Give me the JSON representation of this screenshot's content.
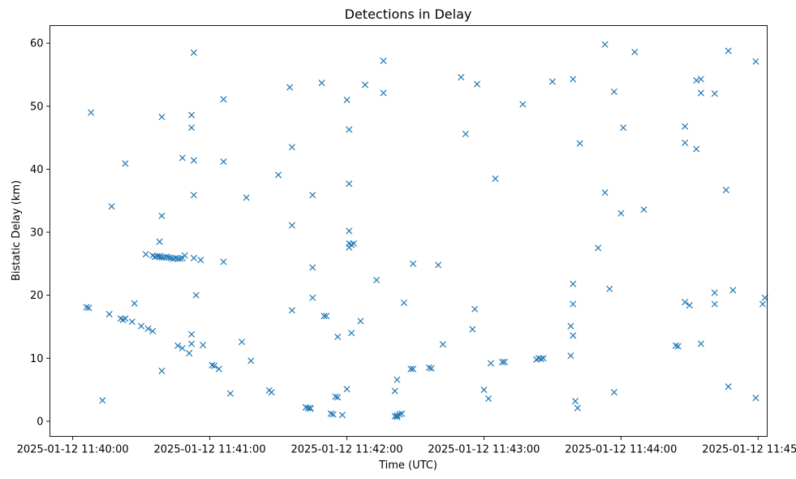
{
  "chart_data": {
    "type": "scatter",
    "title": "Detections in Delay",
    "xlabel": "Time (UTC)",
    "ylabel": "Bistatic Delay (km)",
    "xlim": [
      "2025-01-12 11:39:50",
      "2025-01-12 11:45:04"
    ],
    "ylim": [
      -2.4,
      62.8
    ],
    "x_ticks": [
      "2025-01-12 11:40:00",
      "2025-01-12 11:41:00",
      "2025-01-12 11:42:00",
      "2025-01-12 11:43:00",
      "2025-01-12 11:44:00",
      "2025-01-12 11:45:00"
    ],
    "y_ticks": [
      0,
      10,
      20,
      30,
      40,
      50,
      60
    ],
    "grid": false,
    "marker": "x",
    "color": "#1f77b4",
    "series": [
      {
        "points": [
          [
            "11:40:06",
            18.1
          ],
          [
            "11:40:07",
            18.0
          ],
          [
            "11:40:08",
            49.0
          ],
          [
            "11:40:13",
            3.3
          ],
          [
            "11:40:16",
            17.0
          ],
          [
            "11:40:17",
            34.1
          ],
          [
            "11:40:21",
            16.3
          ],
          [
            "11:40:22",
            16.1
          ],
          [
            "11:40:23",
            16.3
          ],
          [
            "11:40:23",
            40.9
          ],
          [
            "11:40:26",
            15.8
          ],
          [
            "11:40:27",
            18.7
          ],
          [
            "11:40:30",
            15.1
          ],
          [
            "11:40:32",
            26.5
          ],
          [
            "11:40:33",
            14.7
          ],
          [
            "11:40:35",
            26.3
          ],
          [
            "11:40:35",
            14.3
          ],
          [
            "11:40:36",
            26.1
          ],
          [
            "11:40:37",
            26.2
          ],
          [
            "11:40:38",
            26.1
          ],
          [
            "11:40:38",
            28.5
          ],
          [
            "11:40:38",
            26.2
          ],
          [
            "11:40:39",
            48.3
          ],
          [
            "11:40:39",
            32.6
          ],
          [
            "11:40:39",
            26.0
          ],
          [
            "11:40:39",
            8.0
          ],
          [
            "11:40:40",
            26.0
          ],
          [
            "11:40:41",
            26.1
          ],
          [
            "11:40:42",
            26.0
          ],
          [
            "11:40:43",
            25.9
          ],
          [
            "11:40:44",
            25.8
          ],
          [
            "11:40:45",
            25.9
          ],
          [
            "11:40:46",
            12.0
          ],
          [
            "11:40:46",
            25.8
          ],
          [
            "11:40:47",
            25.8
          ],
          [
            "11:40:48",
            41.8
          ],
          [
            "11:40:48",
            25.9
          ],
          [
            "11:40:48",
            11.6
          ],
          [
            "11:40:49",
            26.3
          ],
          [
            "11:40:51",
            10.8
          ],
          [
            "11:40:52",
            48.6
          ],
          [
            "11:40:52",
            46.6
          ],
          [
            "11:40:52",
            12.3
          ],
          [
            "11:40:52",
            13.8
          ],
          [
            "11:40:53",
            58.5
          ],
          [
            "11:40:53",
            41.4
          ],
          [
            "11:40:53",
            35.9
          ],
          [
            "11:40:53",
            25.9
          ],
          [
            "11:40:54",
            20.0
          ],
          [
            "11:40:56",
            25.6
          ],
          [
            "11:40:57",
            12.1
          ],
          [
            "11:41:01",
            8.9
          ],
          [
            "11:41:02",
            8.8
          ],
          [
            "11:41:04",
            8.3
          ],
          [
            "11:41:06",
            51.1
          ],
          [
            "11:41:06",
            41.2
          ],
          [
            "11:41:06",
            25.3
          ],
          [
            "11:41:09",
            4.4
          ],
          [
            "11:41:14",
            12.6
          ],
          [
            "11:41:16",
            35.5
          ],
          [
            "11:41:18",
            9.6
          ],
          [
            "11:41:26",
            4.9
          ],
          [
            "11:41:27",
            4.6
          ],
          [
            "11:41:30",
            39.1
          ],
          [
            "11:41:35",
            53.0
          ],
          [
            "11:41:36",
            43.5
          ],
          [
            "11:41:36",
            31.1
          ],
          [
            "11:41:36",
            17.6
          ],
          [
            "11:41:42",
            2.2
          ],
          [
            "11:41:43",
            2.1
          ],
          [
            "11:41:44",
            2.1
          ],
          [
            "11:41:44",
            2.0
          ],
          [
            "11:41:45",
            35.9
          ],
          [
            "11:41:45",
            24.4
          ],
          [
            "11:41:45",
            19.6
          ],
          [
            "11:41:49",
            53.7
          ],
          [
            "11:41:50",
            16.7
          ],
          [
            "11:41:51",
            16.7
          ],
          [
            "11:41:53",
            1.2
          ],
          [
            "11:41:54",
            1.1
          ],
          [
            "11:41:55",
            3.9
          ],
          [
            "11:41:56",
            13.4
          ],
          [
            "11:41:56",
            3.8
          ],
          [
            "11:41:58",
            1.0
          ],
          [
            "11:42:00",
            51.0
          ],
          [
            "11:42:00",
            5.1
          ],
          [
            "11:42:01",
            46.3
          ],
          [
            "11:42:01",
            37.7
          ],
          [
            "11:42:01",
            30.2
          ],
          [
            "11:42:01",
            28.2
          ],
          [
            "11:42:01",
            27.6
          ],
          [
            "11:42:02",
            14.0
          ],
          [
            "11:42:02",
            28.0
          ],
          [
            "11:42:03",
            28.2
          ],
          [
            "11:42:06",
            15.9
          ],
          [
            "11:42:08",
            53.4
          ],
          [
            "11:42:13",
            22.4
          ],
          [
            "11:42:16",
            52.1
          ],
          [
            "11:42:16",
            57.2
          ],
          [
            "11:42:21",
            4.8
          ],
          [
            "11:42:21",
            0.8
          ],
          [
            "11:42:22",
            6.6
          ],
          [
            "11:42:22",
            0.7
          ],
          [
            "11:42:22",
            0.9
          ],
          [
            "11:42:23",
            1.1
          ],
          [
            "11:42:24",
            1.2
          ],
          [
            "11:42:25",
            18.8
          ],
          [
            "11:42:28",
            8.3
          ],
          [
            "11:42:29",
            8.3
          ],
          [
            "11:42:29",
            25.0
          ],
          [
            "11:42:36",
            8.5
          ],
          [
            "11:42:37",
            8.4
          ],
          [
            "11:42:40",
            24.8
          ],
          [
            "11:42:42",
            12.2
          ],
          [
            "11:42:50",
            54.6
          ],
          [
            "11:42:52",
            45.6
          ],
          [
            "11:42:55",
            14.6
          ],
          [
            "11:42:56",
            17.8
          ],
          [
            "11:42:57",
            53.5
          ],
          [
            "11:43:00",
            5.0
          ],
          [
            "11:43:02",
            3.6
          ],
          [
            "11:43:03",
            9.2
          ],
          [
            "11:43:05",
            38.5
          ],
          [
            "11:43:08",
            9.4
          ],
          [
            "11:43:09",
            9.4
          ],
          [
            "11:43:17",
            50.3
          ],
          [
            "11:43:23",
            9.8
          ],
          [
            "11:43:24",
            10.0
          ],
          [
            "11:43:25",
            9.9
          ],
          [
            "11:43:26",
            10.0
          ],
          [
            "11:43:30",
            53.9
          ],
          [
            "11:43:38",
            10.4
          ],
          [
            "11:43:38",
            15.1
          ],
          [
            "11:43:39",
            54.3
          ],
          [
            "11:43:39",
            21.8
          ],
          [
            "11:43:39",
            18.6
          ],
          [
            "11:43:39",
            13.6
          ],
          [
            "11:43:40",
            3.2
          ],
          [
            "11:43:41",
            2.1
          ],
          [
            "11:43:42",
            44.1
          ],
          [
            "11:43:50",
            27.5
          ],
          [
            "11:43:53",
            36.3
          ],
          [
            "11:43:53",
            59.8
          ],
          [
            "11:43:55",
            21.0
          ],
          [
            "11:43:57",
            4.6
          ],
          [
            "11:43:57",
            52.3
          ],
          [
            "11:44:00",
            33.0
          ],
          [
            "11:44:01",
            46.6
          ],
          [
            "11:44:06",
            58.6
          ],
          [
            "11:44:10",
            33.6
          ],
          [
            "11:44:24",
            12.0
          ],
          [
            "11:44:25",
            11.9
          ],
          [
            "11:44:28",
            46.8
          ],
          [
            "11:44:28",
            44.2
          ],
          [
            "11:44:28",
            18.9
          ],
          [
            "11:44:30",
            18.4
          ],
          [
            "11:44:33",
            43.2
          ],
          [
            "11:44:33",
            54.1
          ],
          [
            "11:44:35",
            54.3
          ],
          [
            "11:44:35",
            52.1
          ],
          [
            "11:44:35",
            12.3
          ],
          [
            "11:44:41",
            52.0
          ],
          [
            "11:44:41",
            20.4
          ],
          [
            "11:44:41",
            18.6
          ],
          [
            "11:44:46",
            36.7
          ],
          [
            "11:44:47",
            58.8
          ],
          [
            "11:44:47",
            5.5
          ],
          [
            "11:44:49",
            20.8
          ],
          [
            "11:44:59",
            57.1
          ],
          [
            "11:44:59",
            3.7
          ],
          [
            "11:45:02",
            18.6
          ],
          [
            "11:45:03",
            19.6
          ]
        ]
      }
    ]
  }
}
